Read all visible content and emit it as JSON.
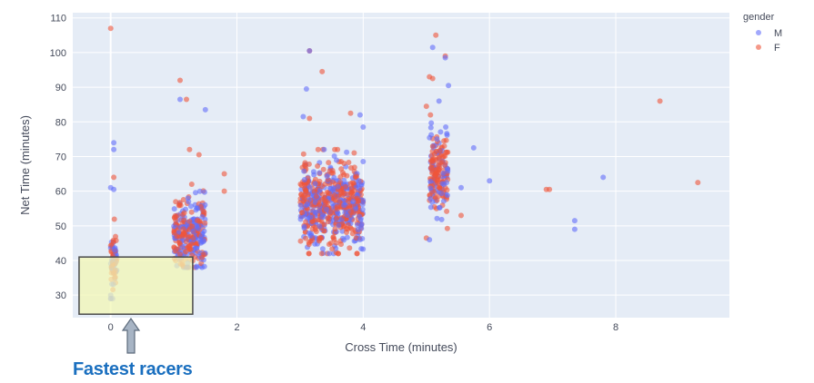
{
  "chart_data": {
    "type": "scatter",
    "xlabel": "Cross Time (minutes)",
    "ylabel": "Net Time (minutes)",
    "xlim": [
      -0.6,
      9.8
    ],
    "ylim": [
      23.5,
      111.5
    ],
    "x_ticks": [
      0,
      2,
      4,
      6,
      8
    ],
    "y_ticks": [
      30,
      40,
      50,
      60,
      70,
      80,
      90,
      100,
      110
    ],
    "grid": true,
    "legend": {
      "title": "gender",
      "placement": "top-right"
    },
    "series": [
      {
        "name": "M",
        "color": "#636efa"
      },
      {
        "name": "F",
        "color": "#ef553b"
      }
    ],
    "clusters": [
      {
        "x_center": 0.05,
        "x_spread": 0.05,
        "y_mean": 40,
        "y_sd": 4,
        "y_min": 29,
        "y_max": 52,
        "n_M": 40,
        "n_F": 35
      },
      {
        "x_center": 1.25,
        "x_spread": 0.25,
        "y_mean": 48,
        "y_sd": 5,
        "y_min": 38,
        "y_max": 62,
        "n_M": 150,
        "n_F": 150
      },
      {
        "x_center": 3.5,
        "x_spread": 0.5,
        "y_mean": 56,
        "y_sd": 6,
        "y_min": 42,
        "y_max": 72,
        "n_M": 300,
        "n_F": 350
      },
      {
        "x_center": 5.2,
        "x_spread": 0.15,
        "y_mean": 65,
        "y_sd": 6,
        "y_min": 46,
        "y_max": 82,
        "n_M": 70,
        "n_F": 120
      }
    ],
    "points": [
      {
        "x": 0.0,
        "y": 107,
        "g": "F"
      },
      {
        "x": 0.05,
        "y": 74,
        "g": "M"
      },
      {
        "x": 0.05,
        "y": 72,
        "g": "M"
      },
      {
        "x": 0.05,
        "y": 64,
        "g": "F"
      },
      {
        "x": 0.0,
        "y": 61,
        "g": "M"
      },
      {
        "x": 0.05,
        "y": 60.5,
        "g": "M"
      },
      {
        "x": 1.1,
        "y": 92,
        "g": "F"
      },
      {
        "x": 1.1,
        "y": 86.5,
        "g": "M"
      },
      {
        "x": 1.2,
        "y": 86.5,
        "g": "F"
      },
      {
        "x": 1.5,
        "y": 83.5,
        "g": "M"
      },
      {
        "x": 1.25,
        "y": 72,
        "g": "F"
      },
      {
        "x": 1.4,
        "y": 70.5,
        "g": "F"
      },
      {
        "x": 1.8,
        "y": 65,
        "g": "F"
      },
      {
        "x": 1.8,
        "y": 60,
        "g": "F"
      },
      {
        "x": 3.15,
        "y": 100.5,
        "g": "M"
      },
      {
        "x": 3.15,
        "y": 100.5,
        "g": "F"
      },
      {
        "x": 3.35,
        "y": 94.5,
        "g": "F"
      },
      {
        "x": 3.1,
        "y": 89.5,
        "g": "M"
      },
      {
        "x": 3.05,
        "y": 81.5,
        "g": "M"
      },
      {
        "x": 3.15,
        "y": 81,
        "g": "F"
      },
      {
        "x": 3.8,
        "y": 82.5,
        "g": "F"
      },
      {
        "x": 3.95,
        "y": 82,
        "g": "M"
      },
      {
        "x": 4.0,
        "y": 78.5,
        "g": "M"
      },
      {
        "x": 5.15,
        "y": 105,
        "g": "F"
      },
      {
        "x": 5.1,
        "y": 101.5,
        "g": "M"
      },
      {
        "x": 5.3,
        "y": 99,
        "g": "F"
      },
      {
        "x": 5.3,
        "y": 98.5,
        "g": "M"
      },
      {
        "x": 5.05,
        "y": 93,
        "g": "F"
      },
      {
        "x": 5.1,
        "y": 92.5,
        "g": "F"
      },
      {
        "x": 5.35,
        "y": 90.5,
        "g": "M"
      },
      {
        "x": 5.2,
        "y": 86,
        "g": "M"
      },
      {
        "x": 5.0,
        "y": 84.5,
        "g": "F"
      },
      {
        "x": 5.75,
        "y": 72.5,
        "g": "M"
      },
      {
        "x": 5.55,
        "y": 61,
        "g": "M"
      },
      {
        "x": 6.0,
        "y": 63,
        "g": "M"
      },
      {
        "x": 6.9,
        "y": 60.5,
        "g": "F"
      },
      {
        "x": 6.95,
        "y": 60.5,
        "g": "F"
      },
      {
        "x": 7.35,
        "y": 51.5,
        "g": "M"
      },
      {
        "x": 7.35,
        "y": 49,
        "g": "M"
      },
      {
        "x": 7.8,
        "y": 64,
        "g": "M"
      },
      {
        "x": 8.7,
        "y": 86,
        "g": "F"
      },
      {
        "x": 9.3,
        "y": 62.5,
        "g": "F"
      },
      {
        "x": 0.0,
        "y": 30,
        "g": "M"
      },
      {
        "x": 0.0,
        "y": 29,
        "g": "M"
      },
      {
        "x": 1.05,
        "y": 38.5,
        "g": "M"
      },
      {
        "x": 5.0,
        "y": 46.5,
        "g": "F"
      },
      {
        "x": 5.05,
        "y": 46,
        "g": "M"
      },
      {
        "x": 5.55,
        "y": 53,
        "g": "F"
      }
    ]
  },
  "annotation": {
    "caption": "Fastest racers",
    "highlight_x": [
      -0.5,
      1.3
    ],
    "highlight_y": [
      24.5,
      41
    ]
  }
}
